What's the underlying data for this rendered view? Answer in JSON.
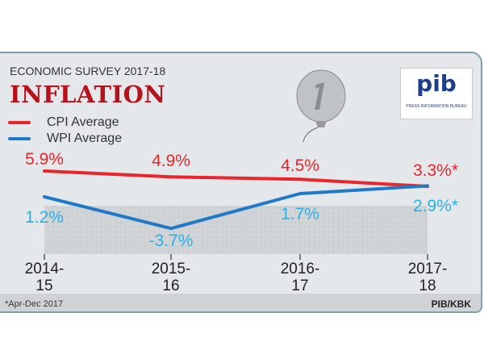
{
  "header": {
    "survey": "ECONOMIC SURVEY 2017-18",
    "title": "INFLATION"
  },
  "logo": {
    "text": "pib",
    "subtitle": "PRESS INFORMATION BUREAU"
  },
  "chart_data": {
    "type": "line",
    "title": "INFLATION",
    "categories": [
      "2014-15",
      "2015-16",
      "2016-17",
      "2017-18"
    ],
    "category_lines": [
      [
        "2014-",
        "15"
      ],
      [
        "2015-",
        "16"
      ],
      [
        "2016-",
        "17"
      ],
      [
        "2017-",
        "18"
      ]
    ],
    "series": [
      {
        "name": "CPI Average",
        "values": [
          5.9,
          4.9,
          4.5,
          3.3
        ],
        "labels": [
          "5.9%",
          "4.9%",
          "4.5%",
          "3.3%*"
        ],
        "color": "#e8262b",
        "label_color": "#e8262b"
      },
      {
        "name": "WPI Average",
        "values": [
          1.2,
          -3.7,
          1.7,
          2.9
        ],
        "labels": [
          "1.2%",
          "-3.7%",
          "1.7%",
          "2.9%*"
        ],
        "color": "#1f78c8",
        "label_color": "#29b0e8"
      }
    ],
    "legend": "top-left",
    "grid": true
  },
  "footer": {
    "note": "*Apr-Dec 2017",
    "credit": "PIB/KBK"
  }
}
